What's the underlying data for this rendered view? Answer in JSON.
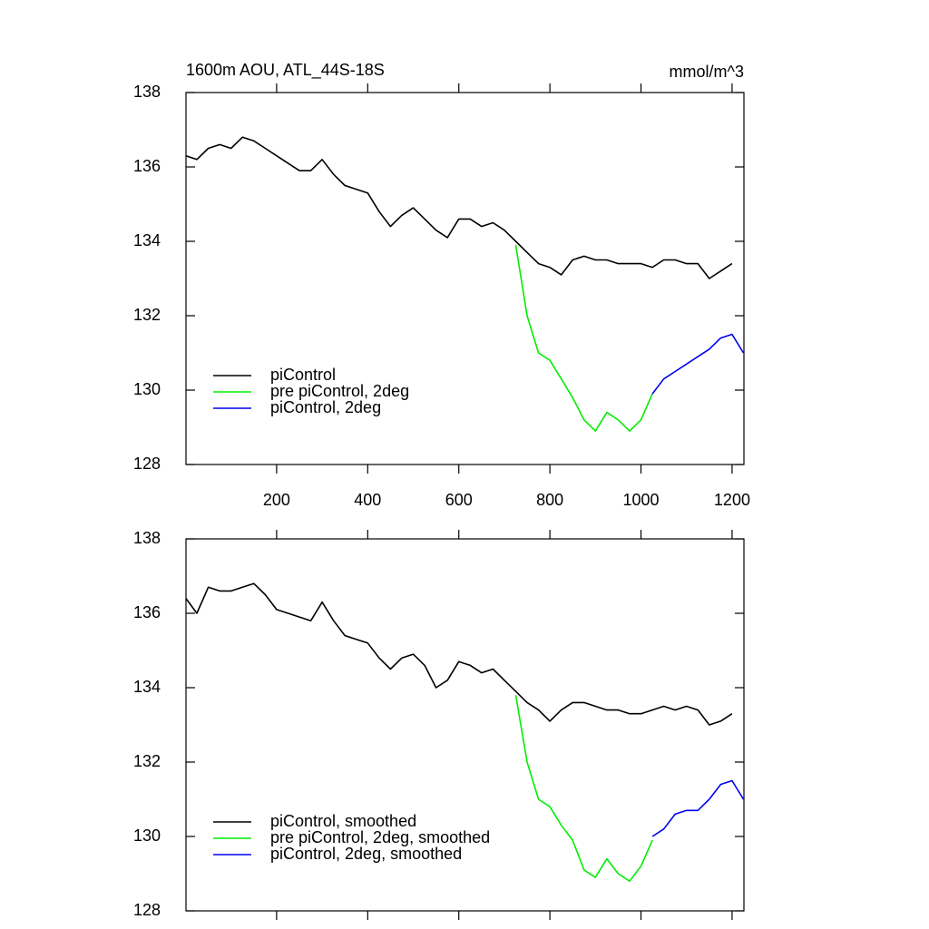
{
  "chart_data": [
    {
      "type": "line",
      "title": "1600m AOU, ATL_44S-18S",
      "units": "mmol/m^3",
      "x": [
        1,
        25,
        50,
        75,
        100,
        125,
        150,
        175,
        200,
        225,
        250,
        275,
        300,
        325,
        350,
        375,
        400,
        425,
        450,
        475,
        500,
        525,
        550,
        575,
        600,
        625,
        650,
        675,
        700,
        725,
        750,
        775,
        800,
        825,
        850,
        875,
        900,
        925,
        950,
        975,
        1000,
        1025,
        1050,
        1075,
        1100,
        1125,
        1150,
        1175,
        1200,
        1225
      ],
      "xlim": [
        1,
        1226
      ],
      "xticks": [
        200,
        400,
        600,
        800,
        1000,
        1200
      ],
      "ylim": [
        128,
        138
      ],
      "yticks": [
        128,
        130,
        132,
        134,
        136,
        138
      ],
      "legend": "bottom-left",
      "series": [
        {
          "name": "piControl",
          "color": "#000000",
          "values": [
            136.3,
            136.2,
            136.5,
            136.6,
            136.5,
            136.8,
            136.7,
            136.5,
            136.3,
            136.1,
            135.9,
            135.9,
            136.2,
            135.8,
            135.5,
            135.4,
            135.3,
            134.8,
            134.4,
            134.7,
            134.9,
            134.6,
            134.3,
            134.1,
            134.6,
            134.6,
            134.4,
            134.5,
            134.3,
            134.0,
            133.7,
            133.4,
            133.3,
            133.1,
            133.5,
            133.6,
            133.5,
            133.5,
            133.4,
            133.4,
            133.4,
            133.3,
            133.5,
            133.5,
            133.4,
            133.4,
            133.0,
            133.2,
            133.4,
            null
          ]
        },
        {
          "name": "pre piControl, 2deg",
          "color": "#00ee00",
          "values": [
            null,
            null,
            null,
            null,
            null,
            null,
            null,
            null,
            null,
            null,
            null,
            null,
            null,
            null,
            null,
            null,
            null,
            null,
            null,
            null,
            null,
            null,
            null,
            null,
            null,
            null,
            null,
            null,
            null,
            133.9,
            132.0,
            131.0,
            130.8,
            130.3,
            129.8,
            129.2,
            128.9,
            129.4,
            129.2,
            128.9,
            129.2,
            129.9,
            null,
            null,
            null,
            null,
            null,
            null,
            null,
            null
          ]
        },
        {
          "name": "piControl, 2deg",
          "color": "#0000ee",
          "values": [
            null,
            null,
            null,
            null,
            null,
            null,
            null,
            null,
            null,
            null,
            null,
            null,
            null,
            null,
            null,
            null,
            null,
            null,
            null,
            null,
            null,
            null,
            null,
            null,
            null,
            null,
            null,
            null,
            null,
            null,
            null,
            null,
            null,
            null,
            null,
            null,
            null,
            null,
            null,
            null,
            null,
            129.9,
            130.3,
            130.5,
            130.7,
            130.9,
            131.1,
            131.4,
            131.5,
            131.0
          ]
        }
      ]
    },
    {
      "type": "line",
      "sharex": true,
      "x": [
        1,
        25,
        50,
        75,
        100,
        125,
        150,
        175,
        200,
        225,
        250,
        275,
        300,
        325,
        350,
        375,
        400,
        425,
        450,
        475,
        500,
        525,
        550,
        575,
        600,
        625,
        650,
        675,
        700,
        725,
        750,
        775,
        800,
        825,
        850,
        875,
        900,
        925,
        950,
        975,
        1000,
        1025,
        1050,
        1075,
        1100,
        1125,
        1150,
        1175,
        1200,
        1225
      ],
      "xlim": [
        1,
        1226
      ],
      "ylim": [
        128,
        138
      ],
      "yticks": [
        128,
        130,
        132,
        134,
        136,
        138
      ],
      "legend": "bottom-left",
      "series": [
        {
          "name": "piControl, smoothed",
          "color": "#000000",
          "values": [
            136.4,
            136.0,
            136.7,
            136.6,
            136.6,
            136.7,
            136.8,
            136.5,
            136.1,
            136.0,
            135.9,
            135.8,
            136.3,
            135.8,
            135.4,
            135.3,
            135.2,
            134.8,
            134.5,
            134.8,
            134.9,
            134.6,
            134.0,
            134.2,
            134.7,
            134.6,
            134.4,
            134.5,
            134.2,
            133.9,
            133.6,
            133.4,
            133.1,
            133.4,
            133.6,
            133.6,
            133.5,
            133.4,
            133.4,
            133.3,
            133.3,
            133.4,
            133.5,
            133.4,
            133.5,
            133.4,
            133.0,
            133.1,
            133.3,
            null
          ]
        },
        {
          "name": "pre piControl, 2deg, smoothed",
          "color": "#00ee00",
          "values": [
            null,
            null,
            null,
            null,
            null,
            null,
            null,
            null,
            null,
            null,
            null,
            null,
            null,
            null,
            null,
            null,
            null,
            null,
            null,
            null,
            null,
            null,
            null,
            null,
            null,
            null,
            null,
            null,
            null,
            133.8,
            132.0,
            131.0,
            130.8,
            130.3,
            129.9,
            129.1,
            128.9,
            129.4,
            129.0,
            128.8,
            129.2,
            129.9,
            null,
            null,
            null,
            null,
            null,
            null,
            null,
            null
          ]
        },
        {
          "name": "piControl, 2deg, smoothed",
          "color": "#0000ee",
          "values": [
            null,
            null,
            null,
            null,
            null,
            null,
            null,
            null,
            null,
            null,
            null,
            null,
            null,
            null,
            null,
            null,
            null,
            null,
            null,
            null,
            null,
            null,
            null,
            null,
            null,
            null,
            null,
            null,
            null,
            null,
            null,
            null,
            null,
            null,
            null,
            null,
            null,
            null,
            null,
            null,
            null,
            130.0,
            130.2,
            130.6,
            130.7,
            130.7,
            131.0,
            131.4,
            131.5,
            131.0
          ]
        }
      ]
    }
  ]
}
